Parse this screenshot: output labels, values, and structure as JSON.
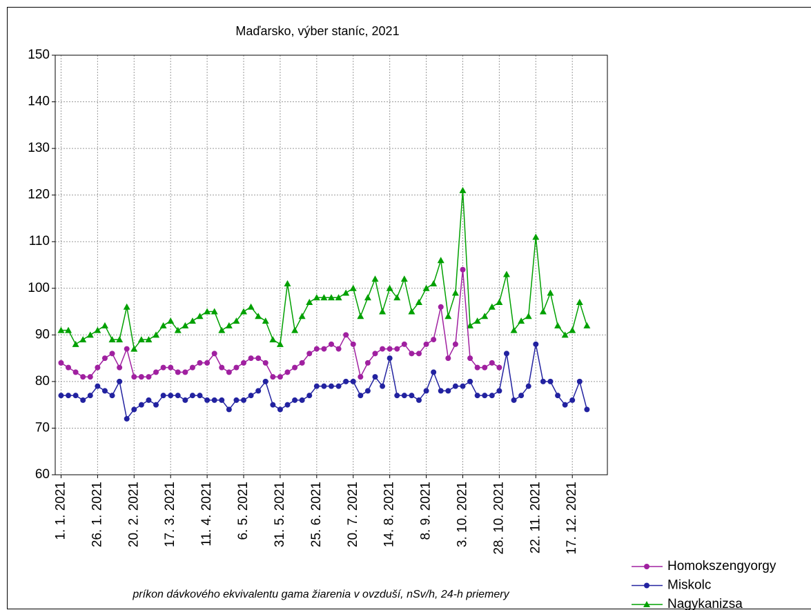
{
  "chart_data": {
    "type": "line",
    "title": "Maďarsko, výber staníc, 2021",
    "x_label": "príkon dávkového ekvivalentu gama žiarenia v ovzduší, nSv/h, 24-h priemery",
    "x": [
      "2021-01-01",
      "2021-01-06",
      "2021-01-11",
      "2021-01-16",
      "2021-01-21",
      "2021-01-26",
      "2021-01-31",
      "2021-02-05",
      "2021-02-10",
      "2021-02-15",
      "2021-02-20",
      "2021-02-25",
      "2021-03-02",
      "2021-03-07",
      "2021-03-12",
      "2021-03-17",
      "2021-03-22",
      "2021-03-27",
      "2021-04-01",
      "2021-04-06",
      "2021-04-11",
      "2021-04-16",
      "2021-04-21",
      "2021-04-26",
      "2021-05-01",
      "2021-05-06",
      "2021-05-11",
      "2021-05-16",
      "2021-05-21",
      "2021-05-26",
      "2021-05-31",
      "2021-06-05",
      "2021-06-10",
      "2021-06-15",
      "2021-06-20",
      "2021-06-25",
      "2021-06-30",
      "2021-07-05",
      "2021-07-10",
      "2021-07-15",
      "2021-07-20",
      "2021-07-25",
      "2021-07-30",
      "2021-08-04",
      "2021-08-09",
      "2021-08-14",
      "2021-08-19",
      "2021-08-24",
      "2021-08-29",
      "2021-09-03",
      "2021-09-08",
      "2021-09-13",
      "2021-09-18",
      "2021-09-23",
      "2021-09-28",
      "2021-10-03",
      "2021-10-08",
      "2021-10-13",
      "2021-10-18",
      "2021-10-23",
      "2021-10-28",
      "2021-11-02",
      "2021-11-07",
      "2021-11-12",
      "2021-11-17",
      "2021-11-22",
      "2021-11-27",
      "2021-12-02",
      "2021-12-07",
      "2021-12-12",
      "2021-12-17",
      "2021-12-22",
      "2021-12-27"
    ],
    "series": [
      {
        "name": "Homokszengyorgy",
        "color": "#a020a0",
        "marker": "circle",
        "values": [
          84,
          83,
          82,
          81,
          81,
          83,
          85,
          86,
          83,
          87,
          81,
          81,
          81,
          82,
          83,
          83,
          82,
          82,
          83,
          84,
          84,
          86,
          83,
          82,
          83,
          84,
          85,
          85,
          84,
          81,
          81,
          82,
          83,
          84,
          86,
          87,
          87,
          88,
          87,
          90,
          88,
          81,
          84,
          86,
          87,
          87,
          87,
          88,
          86,
          86,
          88,
          89,
          96,
          85,
          88,
          104,
          85,
          83,
          83,
          84,
          83,
          null,
          null,
          null,
          null,
          null,
          null,
          null,
          null,
          null,
          null,
          null,
          null
        ]
      },
      {
        "name": "Miskolc",
        "color": "#2222a0",
        "marker": "circle",
        "values": [
          77,
          77,
          77,
          76,
          77,
          79,
          78,
          77,
          80,
          72,
          74,
          75,
          76,
          75,
          77,
          77,
          77,
          76,
          77,
          77,
          76,
          76,
          76,
          74,
          76,
          76,
          77,
          78,
          80,
          75,
          74,
          75,
          76,
          76,
          77,
          79,
          79,
          79,
          79,
          80,
          80,
          77,
          78,
          81,
          79,
          85,
          77,
          77,
          77,
          76,
          78,
          82,
          78,
          78,
          79,
          79,
          80,
          77,
          77,
          77,
          78,
          86,
          76,
          77,
          79,
          88,
          80,
          80,
          77,
          75,
          76,
          80,
          74
        ]
      },
      {
        "name": "Nagykanizsa",
        "color": "#00a000",
        "marker": "triangle",
        "values": [
          91,
          91,
          88,
          89,
          90,
          91,
          92,
          89,
          89,
          96,
          87,
          89,
          89,
          90,
          92,
          93,
          91,
          92,
          93,
          94,
          95,
          95,
          91,
          92,
          93,
          95,
          96,
          94,
          93,
          89,
          88,
          101,
          91,
          94,
          97,
          98,
          98,
          98,
          98,
          99,
          100,
          94,
          98,
          102,
          95,
          100,
          98,
          102,
          95,
          97,
          100,
          101,
          106,
          94,
          99,
          121,
          92,
          93,
          94,
          96,
          97,
          103,
          91,
          93,
          94,
          111,
          95,
          99,
          92,
          90,
          91,
          97,
          92
        ]
      }
    ],
    "xlim": [
      "2020-12-28",
      "2022-01-10"
    ],
    "xticks": [
      {
        "value": "2021-01-01",
        "label": "1. 1. 2021"
      },
      {
        "value": "2021-01-26",
        "label": "26. 1. 2021"
      },
      {
        "value": "2021-02-20",
        "label": "20. 2. 2021"
      },
      {
        "value": "2021-03-17",
        "label": "17. 3. 2021"
      },
      {
        "value": "2021-04-11",
        "label": "11. 4. 2021"
      },
      {
        "value": "2021-05-06",
        "label": "6. 5. 2021"
      },
      {
        "value": "2021-05-31",
        "label": "31. 5. 2021"
      },
      {
        "value": "2021-06-25",
        "label": "25. 6. 2021"
      },
      {
        "value": "2021-07-20",
        "label": "20. 7. 2021"
      },
      {
        "value": "2021-08-14",
        "label": "14. 8. 2021"
      },
      {
        "value": "2021-09-08",
        "label": "8. 9. 2021"
      },
      {
        "value": "2021-10-03",
        "label": "3. 10. 2021"
      },
      {
        "value": "2021-10-28",
        "label": "28. 10. 2021"
      },
      {
        "value": "2021-11-22",
        "label": "22. 11. 2021"
      },
      {
        "value": "2021-12-17",
        "label": "17. 12. 2021"
      }
    ],
    "ylim": [
      60,
      150
    ],
    "yticks": [
      60,
      70,
      80,
      90,
      100,
      110,
      120,
      130,
      140,
      150
    ],
    "grid": true,
    "legend": "bottom-right"
  }
}
